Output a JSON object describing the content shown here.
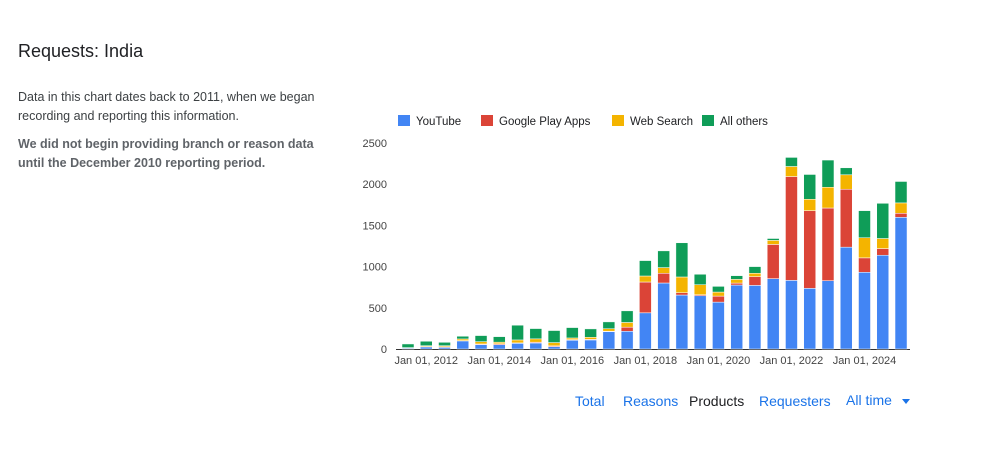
{
  "page": {
    "title": "Requests: India",
    "description": "Data in this chart dates back to 2011, when we began recording and reporting this information.",
    "note": "We did not begin providing branch or reason data until the December 2010 reporting period."
  },
  "tabs": [
    {
      "label": "Total",
      "selected": false
    },
    {
      "label": "Reasons",
      "selected": false
    },
    {
      "label": "Products",
      "selected": true
    },
    {
      "label": "Requesters",
      "selected": false
    }
  ],
  "time_filter": {
    "label": "All time",
    "icon": "dropdown-arrow-icon"
  },
  "chart_data": {
    "type": "bar",
    "stacked": true,
    "legend_position": "top",
    "grid": false,
    "ylim": [
      0,
      2500
    ],
    "yticks": [
      "2500",
      "2000",
      "1500",
      "1000",
      "500",
      "0"
    ],
    "xticks": [
      "Jan 01, 2012",
      "Jan 01, 2014",
      "Jan 01, 2016",
      "Jan 01, 2018",
      "Jan 01, 2020",
      "Jan 01, 2022",
      "Jan 01, 2024"
    ],
    "x": [
      "2011-07",
      "2012-01",
      "2012-07",
      "2013-01",
      "2013-07",
      "2014-01",
      "2014-07",
      "2015-01",
      "2015-07",
      "2016-01",
      "2016-07",
      "2017-01",
      "2017-07",
      "2018-01",
      "2018-07",
      "2019-01",
      "2019-07",
      "2020-01",
      "2020-07",
      "2021-01",
      "2021-07",
      "2022-01",
      "2022-07",
      "2023-01",
      "2023-07",
      "2024-01",
      "2024-07",
      "2025-01"
    ],
    "series": [
      {
        "name": "YouTube",
        "color": "#4285F4",
        "values": [
          10,
          25,
          20,
          98,
          53,
          53,
          69,
          73,
          28,
          106,
          110,
          211,
          215,
          439,
          801,
          655,
          646,
          569,
          776,
          772,
          854,
          833,
          736,
          829,
          1236,
          931,
          1138,
          1598
        ]
      },
      {
        "name": "Google Play Apps",
        "color": "#DB4437",
        "values": [
          2,
          5,
          8,
          4,
          8,
          10,
          5,
          10,
          10,
          8,
          8,
          5,
          50,
          374,
          118,
          28,
          12,
          73,
          24,
          106,
          415,
          1260,
          943,
          882,
          703,
          175,
          81,
          49
        ]
      },
      {
        "name": "Web Search",
        "color": "#F4B400",
        "values": [
          5,
          10,
          12,
          20,
          28,
          20,
          36,
          40,
          40,
          20,
          24,
          30,
          57,
          73,
          69,
          191,
          122,
          49,
          45,
          41,
          49,
          122,
          138,
          252,
          175,
          244,
          122,
          126
        ]
      },
      {
        "name": "All others",
        "color": "#0F9D58",
        "values": [
          44,
          54,
          41,
          33,
          74,
          67,
          179,
          125,
          146,
          126,
          102,
          83,
          141,
          187,
          203,
          415,
          127,
          69,
          45,
          81,
          23,
          110,
          301,
          330,
          85,
          329,
          427,
          260
        ]
      }
    ]
  }
}
